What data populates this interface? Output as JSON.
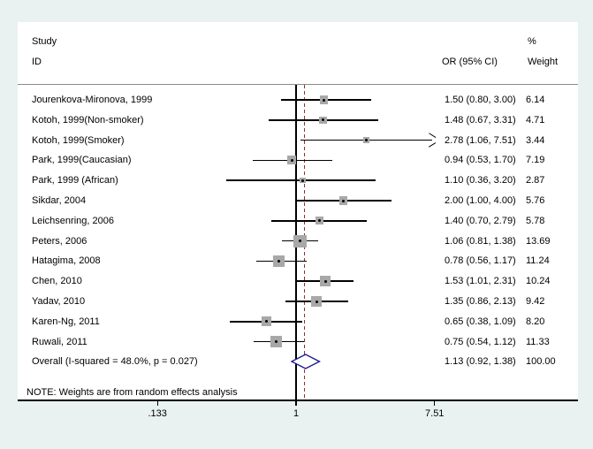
{
  "chart_data": {
    "type": "forest",
    "header": {
      "study_line1": "Study",
      "study_line2": "ID",
      "percent_label": "%",
      "effect_col": "OR (95% CI)",
      "weight_col": "Weight"
    },
    "studies": [
      {
        "label": "Jourenkova-Mironova, 1999",
        "or": 1.5,
        "lo": 0.8,
        "hi": 3.0,
        "or_text": "1.50 (0.80, 3.00)",
        "weight": 6.14,
        "weight_text": "6.14"
      },
      {
        "label": "Kotoh, 1999(Non-smoker)",
        "or": 1.48,
        "lo": 0.67,
        "hi": 3.31,
        "or_text": "1.48 (0.67, 3.31)",
        "weight": 4.71,
        "weight_text": "4.71"
      },
      {
        "label": "Kotoh, 1999(Smoker)",
        "or": 2.78,
        "lo": 1.06,
        "hi": 7.51,
        "or_text": "2.78 (1.06, 7.51)",
        "weight": 3.44,
        "weight_text": "3.44",
        "arrow": true
      },
      {
        "label": "Park, 1999(Caucasian)",
        "or": 0.94,
        "lo": 0.53,
        "hi": 1.7,
        "or_text": "0.94 (0.53, 1.70)",
        "weight": 7.19,
        "weight_text": "7.19"
      },
      {
        "label": "Park, 1999 (African)",
        "or": 1.1,
        "lo": 0.36,
        "hi": 3.2,
        "or_text": "1.10 (0.36, 3.20)",
        "weight": 2.87,
        "weight_text": "2.87"
      },
      {
        "label": "Sikdar, 2004",
        "or": 2.0,
        "lo": 1.0,
        "hi": 4.0,
        "or_text": "2.00 (1.00, 4.00)",
        "weight": 5.76,
        "weight_text": "5.76"
      },
      {
        "label": "Leichsenring, 2006",
        "or": 1.4,
        "lo": 0.7,
        "hi": 2.79,
        "or_text": "1.40 (0.70, 2.79)",
        "weight": 5.78,
        "weight_text": "5.78"
      },
      {
        "label": "Peters, 2006",
        "or": 1.06,
        "lo": 0.81,
        "hi": 1.38,
        "or_text": "1.06 (0.81, 1.38)",
        "weight": 13.69,
        "weight_text": "13.69"
      },
      {
        "label": "Hatagima, 2008",
        "or": 0.78,
        "lo": 0.56,
        "hi": 1.17,
        "or_text": "0.78 (0.56, 1.17)",
        "weight": 11.24,
        "weight_text": "11.24"
      },
      {
        "label": "Chen, 2010",
        "or": 1.53,
        "lo": 1.01,
        "hi": 2.31,
        "or_text": "1.53 (1.01, 2.31)",
        "weight": 10.24,
        "weight_text": "10.24"
      },
      {
        "label": "Yadav, 2010",
        "or": 1.35,
        "lo": 0.86,
        "hi": 2.13,
        "or_text": "1.35 (0.86, 2.13)",
        "weight": 9.42,
        "weight_text": "9.42"
      },
      {
        "label": "Karen-Ng, 2011",
        "or": 0.65,
        "lo": 0.38,
        "hi": 1.09,
        "or_text": "0.65 (0.38, 1.09)",
        "weight": 8.2,
        "weight_text": "8.20"
      },
      {
        "label": "Ruwali, 2011",
        "or": 0.75,
        "lo": 0.54,
        "hi": 1.12,
        "or_text": "0.75 (0.54, 1.12)",
        "weight": 11.33,
        "weight_text": "11.33"
      }
    ],
    "overall": {
      "label": "Overall  (I-squared = 48.0%, p = 0.027)",
      "or": 1.13,
      "lo": 0.92,
      "hi": 1.38,
      "or_text": "1.13 (0.92, 1.38)",
      "weight_text": "100.00"
    },
    "note": "NOTE: Weights are from random effects analysis",
    "axis": {
      "scale": "log",
      "ticks": [
        {
          "label": ".133",
          "value": 0.133
        },
        {
          "label": "1",
          "value": 1
        },
        {
          "label": "7.51",
          "value": 7.51
        }
      ]
    },
    "null_line_value": 1,
    "overall_line_value": 1.13,
    "colors": {
      "background": "#e9f1f1",
      "panel": "#ffffff",
      "box_fill": "#a8a8a8",
      "ci_line": "#000000",
      "diamond_outline": "#1a1a8f",
      "overall_dashed_line": "#8b3232",
      "header_rule": "#8a8a8a",
      "axis_line": "#000000",
      "text": "#000000"
    }
  }
}
